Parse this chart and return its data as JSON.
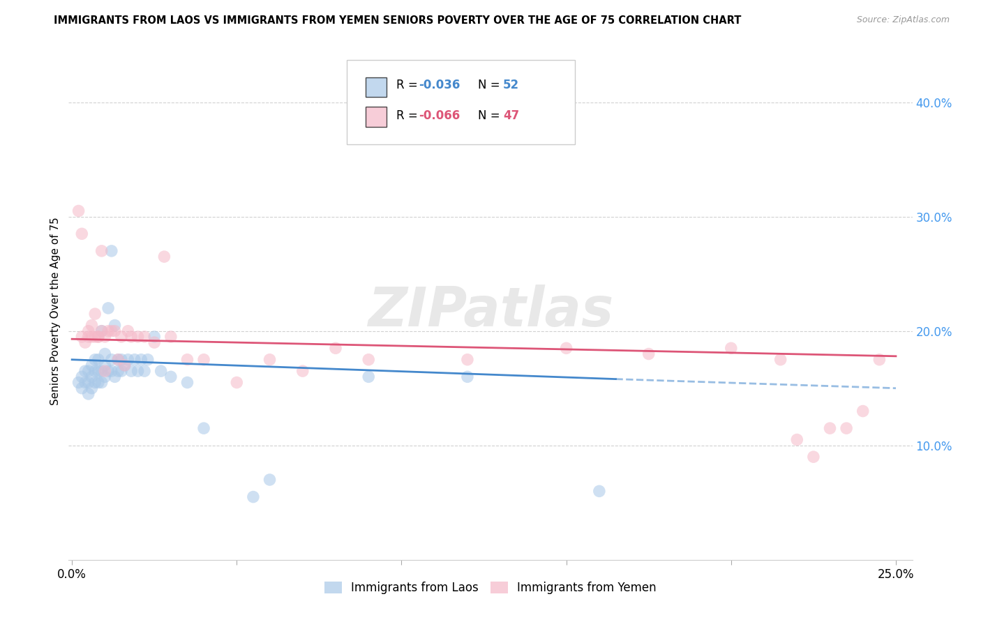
{
  "title": "IMMIGRANTS FROM LAOS VS IMMIGRANTS FROM YEMEN SENIORS POVERTY OVER THE AGE OF 75 CORRELATION CHART",
  "source": "Source: ZipAtlas.com",
  "ylabel": "Seniors Poverty Over the Age of 75",
  "x_tick_labels_left": "0.0%",
  "x_tick_labels_right": "25.0%",
  "y_tick_labels": [
    "10.0%",
    "20.0%",
    "30.0%",
    "40.0%"
  ],
  "y_ticks": [
    0.1,
    0.2,
    0.3,
    0.4
  ],
  "xlim": [
    -0.001,
    0.255
  ],
  "ylim": [
    0.0,
    0.435
  ],
  "legend_label_blue": "Immigrants from Laos",
  "legend_label_pink": "Immigrants from Yemen",
  "legend_r_blue": "R = -0.036",
  "legend_n_blue": "N = 52",
  "legend_r_pink": "R = -0.066",
  "legend_n_pink": "N = 47",
  "blue_color": "#a8c8e8",
  "pink_color": "#f5b8c8",
  "trend_blue_color": "#4488cc",
  "trend_pink_color": "#dd5577",
  "y_label_color": "#4499ee",
  "background_color": "#ffffff",
  "grid_color": "#cccccc",
  "watermark": "ZIPatlas",
  "laos_x": [
    0.002,
    0.003,
    0.003,
    0.004,
    0.004,
    0.005,
    0.005,
    0.005,
    0.006,
    0.006,
    0.006,
    0.007,
    0.007,
    0.007,
    0.008,
    0.008,
    0.008,
    0.009,
    0.009,
    0.009,
    0.01,
    0.01,
    0.01,
    0.011,
    0.011,
    0.012,
    0.012,
    0.012,
    0.013,
    0.013,
    0.014,
    0.014,
    0.015,
    0.015,
    0.016,
    0.017,
    0.018,
    0.019,
    0.02,
    0.021,
    0.022,
    0.023,
    0.025,
    0.027,
    0.03,
    0.035,
    0.04,
    0.055,
    0.06,
    0.09,
    0.12,
    0.16
  ],
  "laos_y": [
    0.155,
    0.15,
    0.16,
    0.155,
    0.165,
    0.145,
    0.155,
    0.165,
    0.15,
    0.16,
    0.17,
    0.155,
    0.165,
    0.175,
    0.155,
    0.165,
    0.175,
    0.155,
    0.165,
    0.2,
    0.16,
    0.17,
    0.18,
    0.165,
    0.22,
    0.165,
    0.175,
    0.27,
    0.16,
    0.205,
    0.165,
    0.175,
    0.165,
    0.175,
    0.17,
    0.175,
    0.165,
    0.175,
    0.165,
    0.175,
    0.165,
    0.175,
    0.195,
    0.165,
    0.16,
    0.155,
    0.115,
    0.055,
    0.07,
    0.16,
    0.16,
    0.06
  ],
  "yemen_x": [
    0.002,
    0.003,
    0.003,
    0.004,
    0.005,
    0.005,
    0.006,
    0.006,
    0.007,
    0.007,
    0.008,
    0.008,
    0.009,
    0.009,
    0.01,
    0.01,
    0.011,
    0.012,
    0.013,
    0.014,
    0.015,
    0.016,
    0.017,
    0.018,
    0.02,
    0.022,
    0.025,
    0.028,
    0.03,
    0.035,
    0.04,
    0.05,
    0.06,
    0.07,
    0.08,
    0.09,
    0.12,
    0.15,
    0.175,
    0.2,
    0.215,
    0.22,
    0.225,
    0.23,
    0.235,
    0.24,
    0.245
  ],
  "yemen_y": [
    0.305,
    0.285,
    0.195,
    0.19,
    0.2,
    0.195,
    0.205,
    0.195,
    0.195,
    0.215,
    0.195,
    0.195,
    0.2,
    0.27,
    0.195,
    0.165,
    0.2,
    0.2,
    0.2,
    0.175,
    0.195,
    0.17,
    0.2,
    0.195,
    0.195,
    0.195,
    0.19,
    0.265,
    0.195,
    0.175,
    0.175,
    0.155,
    0.175,
    0.165,
    0.185,
    0.175,
    0.175,
    0.185,
    0.18,
    0.185,
    0.175,
    0.105,
    0.09,
    0.115,
    0.115,
    0.13,
    0.175
  ],
  "trend_blue_x0": 0.0,
  "trend_blue_x_solid_end": 0.165,
  "trend_blue_x_end": 0.25,
  "trend_blue_y0": 0.175,
  "trend_blue_y_solid_end": 0.158,
  "trend_blue_y_end": 0.15,
  "trend_pink_x0": 0.0,
  "trend_pink_x_end": 0.25,
  "trend_pink_y0": 0.193,
  "trend_pink_y_end": 0.178
}
